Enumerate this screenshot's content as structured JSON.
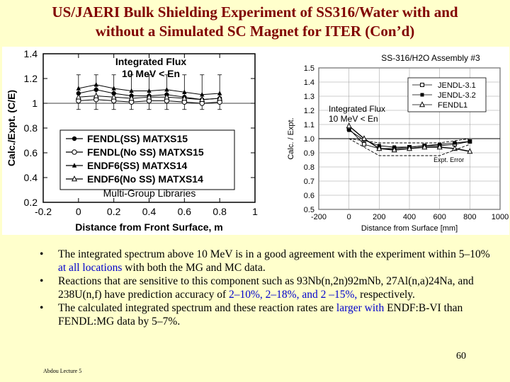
{
  "slide": {
    "title_line1": "US/JAERI Bulk Shielding Experiment of SS316/Water with and",
    "title_line2": "without a Simulated SC Magnet for ITER (Con’d)",
    "page_number": "60",
    "footer": "Abdou Lecture 5"
  },
  "bullets": [
    {
      "parts": [
        {
          "text": "The integrated spectrum above 10 MeV is in a good agreement with the experiment within 5–10% ",
          "blue": false
        },
        {
          "text": "at all locations",
          "blue": true
        },
        {
          "text": " with both the MG and MC data.",
          "blue": false
        }
      ]
    },
    {
      "parts": [
        {
          "text": "Reactions that are sensitive to this component such as 93Nb(n,2n)92mNb, 27Al(n,a)24Na, and 238U(n,f) have prediction accuracy of ",
          "blue": false
        },
        {
          "text": "2–10%, 2–18%, and 2 –15%,",
          "blue": true
        },
        {
          "text": " respectively.",
          "blue": false
        }
      ]
    },
    {
      "parts": [
        {
          "text": "The calculated integrated spectrum and these reaction rates are ",
          "blue": false
        },
        {
          "text": "larger with",
          "blue": true
        },
        {
          "text": " ENDF:B-VI than FENDL:MG data by 5–7%.",
          "blue": false
        }
      ]
    }
  ],
  "chart_data": [
    {
      "type": "line",
      "ylabel": "Calc./Expt. (C/E)",
      "xlabel": "Distance from Front Surface, m",
      "xlim": [
        -0.2,
        1.0
      ],
      "ylim": [
        0.2,
        1.4
      ],
      "xticks": [
        "-0.2",
        "0",
        "0.2",
        "0.4",
        "0.6",
        "0.8",
        "1"
      ],
      "yticks": [
        "0.2",
        "0.4",
        "0.6",
        "0.8",
        "1",
        "1.2",
        "1.4"
      ],
      "annotation": [
        "Integrated Flux",
        "10 MeV < En"
      ],
      "box_label": "Multi-Group Libraries",
      "x": [
        0.0,
        0.1,
        0.2,
        0.3,
        0.4,
        0.5,
        0.6,
        0.7,
        0.8
      ],
      "series": [
        {
          "name": "FENDL(SS) MATXS15",
          "values": [
            1.08,
            1.11,
            1.08,
            1.06,
            1.06,
            1.07,
            1.05,
            1.03,
            1.04
          ],
          "marker": "filled-circle"
        },
        {
          "name": "FENDL(No SS) MATXS15",
          "values": [
            1.02,
            1.03,
            1.02,
            1.01,
            1.02,
            1.02,
            1.01,
            1.0,
            1.01
          ],
          "marker": "open-circle"
        },
        {
          "name": "ENDF6(SS) MATXS14",
          "values": [
            1.12,
            1.15,
            1.12,
            1.1,
            1.1,
            1.11,
            1.09,
            1.07,
            1.08
          ],
          "marker": "filled-triangle"
        },
        {
          "name": "ENDF6(No SS) MATXS14",
          "values": [
            1.05,
            1.06,
            1.05,
            1.04,
            1.05,
            1.05,
            1.04,
            1.03,
            1.04
          ],
          "marker": "open-triangle"
        }
      ]
    },
    {
      "type": "line",
      "title": "SS-316/H2O  Assembly #3",
      "ylabel": "Calc. / Expt.",
      "xlabel": "Distance from Surface  [mm]",
      "xlim": [
        -200,
        1000
      ],
      "ylim": [
        0.5,
        1.5
      ],
      "xticks": [
        "-200",
        "0",
        "200",
        "400",
        "600",
        "800",
        "1000"
      ],
      "yticks": [
        "0.5",
        "0.6",
        "0.7",
        "0.8",
        "0.9",
        "1.0",
        "1.1",
        "1.2",
        "1.3",
        "1.4",
        "1.5"
      ],
      "annotation": [
        "Integrated Flux",
        "10 MeV < En"
      ],
      "error_label": "Expt. Error",
      "series": [
        {
          "name": "JENDL-3.1",
          "x": [
            0,
            100,
            200,
            300,
            400,
            500,
            600,
            700,
            800
          ],
          "values": [
            1.07,
            0.96,
            0.93,
            0.93,
            0.94,
            0.95,
            0.95,
            0.96,
            0.98
          ],
          "marker": "open-square"
        },
        {
          "name": "JENDL-3.2",
          "x": [
            0,
            100,
            200,
            300,
            400,
            500,
            600,
            700,
            800
          ],
          "values": [
            1.06,
            0.99,
            0.95,
            0.94,
            0.94,
            0.95,
            0.96,
            0.97,
            0.98
          ],
          "marker": "filled-square"
        },
        {
          "name": "FENDL1",
          "x": [
            0,
            100,
            200,
            300,
            400,
            500,
            600,
            700,
            800
          ],
          "values": [
            1.09,
            1.0,
            0.93,
            0.92,
            0.93,
            0.94,
            0.94,
            0.93,
            0.91
          ],
          "marker": "open-triangle"
        },
        {
          "name": "Expt. Error (upper)",
          "x": [
            0,
            200,
            400,
            600,
            800
          ],
          "values": [
            1.0,
            0.97,
            0.97,
            0.97,
            1.0
          ],
          "marker": "none"
        },
        {
          "name": "Expt. Error (lower)",
          "x": [
            0,
            200,
            400,
            600,
            800
          ],
          "values": [
            1.0,
            0.88,
            0.88,
            0.88,
            0.96
          ],
          "marker": "none"
        }
      ]
    }
  ]
}
